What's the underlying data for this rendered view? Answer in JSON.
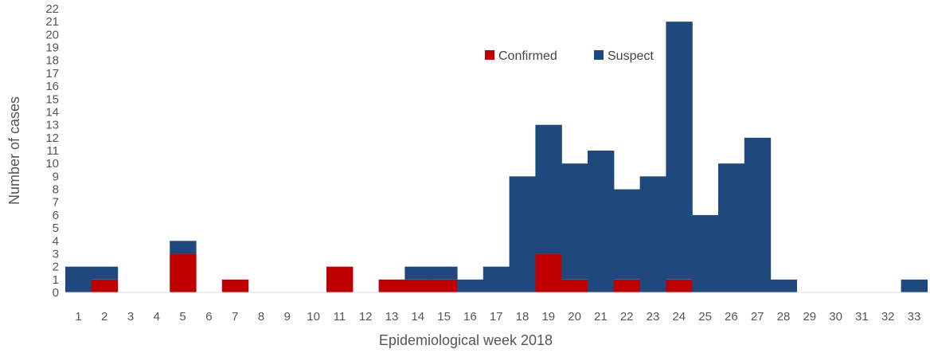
{
  "chart_data": {
    "type": "bar",
    "stacked": true,
    "xlabel": "Epidemiological week 2018",
    "ylabel": "Number of cases",
    "categories": [
      "1",
      "2",
      "3",
      "4",
      "5",
      "6",
      "7",
      "8",
      "9",
      "10",
      "11",
      "12",
      "13",
      "14",
      "15",
      "16",
      "17",
      "18",
      "19",
      "20",
      "21",
      "22",
      "23",
      "24",
      "25",
      "26",
      "27",
      "28",
      "29",
      "30",
      "31",
      "32",
      "33"
    ],
    "yticks": [
      "0",
      "1",
      "2",
      "3",
      "4",
      "5",
      "6",
      "7",
      "8",
      "9",
      "10",
      "11",
      "12",
      "13",
      "14",
      "15",
      "16",
      "17",
      "18",
      "19",
      "20",
      "21",
      "22"
    ],
    "ylim": [
      0,
      22
    ],
    "grid": false,
    "legend_position": "top-right",
    "series": [
      {
        "name": "Confirmed",
        "color": "#C00000",
        "values": [
          0,
          1,
          0,
          0,
          3,
          0,
          1,
          0,
          0,
          0,
          2,
          0,
          1,
          1,
          1,
          0,
          0,
          0,
          3,
          1,
          0,
          1,
          0,
          1,
          0,
          0,
          0,
          0,
          0,
          0,
          0,
          0,
          0
        ]
      },
      {
        "name": "Suspect",
        "color": "#1F497D",
        "values": [
          2,
          1,
          0,
          0,
          1,
          0,
          0,
          0,
          0,
          0,
          0,
          0,
          0,
          1,
          1,
          1,
          2,
          9,
          10,
          9,
          11,
          7,
          9,
          20,
          6,
          10,
          12,
          1,
          0,
          0,
          0,
          0,
          1
        ]
      }
    ]
  }
}
